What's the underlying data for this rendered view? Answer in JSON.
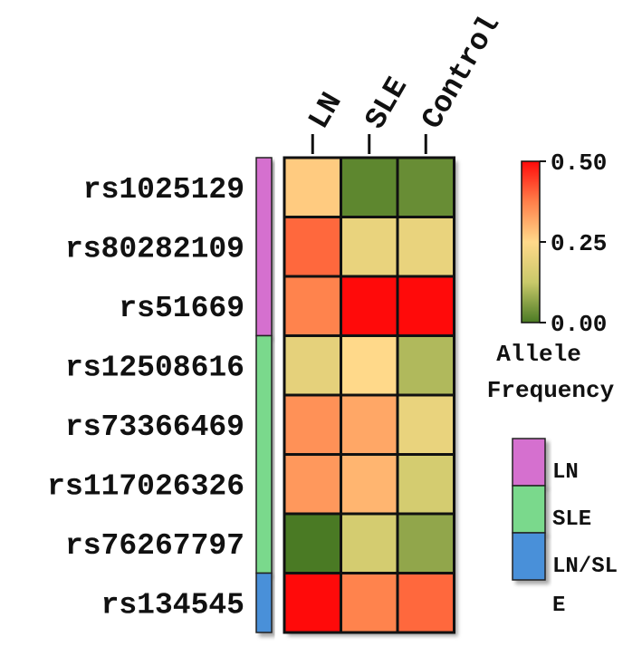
{
  "chart_data": {
    "type": "heatmap",
    "columns": [
      "LN",
      "SLE",
      "Control"
    ],
    "rows": [
      "rs1025129",
      "rs80282109",
      "rs51669",
      "rs12508616",
      "rs73366469",
      "rs117026326",
      "rs76267797",
      "rs134545"
    ],
    "values": [
      [
        0.27,
        0.02,
        0.03
      ],
      [
        0.4,
        0.2,
        0.2
      ],
      [
        0.37,
        0.5,
        0.5
      ],
      [
        0.19,
        0.25,
        0.1
      ],
      [
        0.35,
        0.32,
        0.2
      ],
      [
        0.34,
        0.3,
        0.15
      ],
      [
        0.0,
        0.15,
        0.07
      ],
      [
        0.5,
        0.37,
        0.4
      ]
    ],
    "row_groups": [
      "LN",
      "LN",
      "LN",
      "SLE",
      "SLE",
      "SLE",
      "SLE",
      "LN/SLE"
    ],
    "colorbar": {
      "title_line1": "Allele",
      "title_line2": "Frequency",
      "min": 0.0,
      "max": 0.5,
      "ticks": [
        {
          "value": 0.5,
          "label": "0.50"
        },
        {
          "value": 0.25,
          "label": "0.25"
        },
        {
          "value": 0.0,
          "label": "0.00"
        }
      ],
      "colors": [
        "#4a7a24",
        "#c9c96a",
        "#ffd98a",
        "#ff7f4a",
        "#ff0a0a"
      ]
    },
    "group_legend": [
      {
        "key": "LN",
        "label": "LN",
        "color": "#d56fcf"
      },
      {
        "key": "SLE",
        "label": "SLE",
        "color": "#7ad98c"
      },
      {
        "key": "LN/SLE",
        "label_line1": "LN/SL",
        "label_line2": "E",
        "color": "#4a90d9"
      }
    ]
  }
}
